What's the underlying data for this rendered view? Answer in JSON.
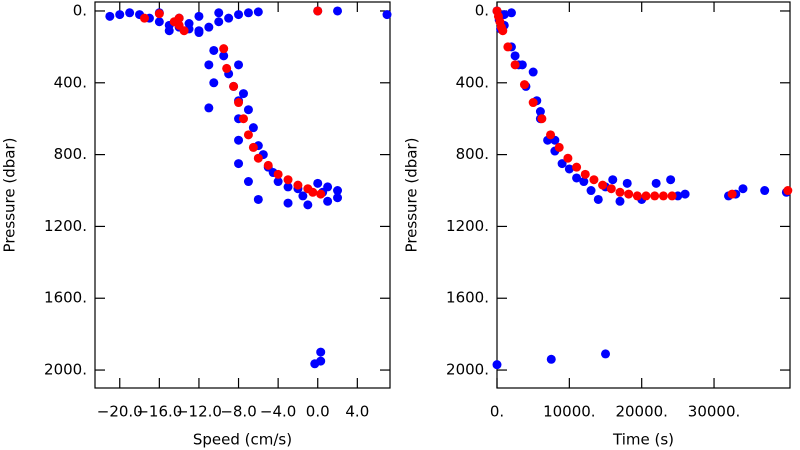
{
  "chart_data": [
    {
      "type": "scatter",
      "xlabel": "Speed (cm/s)",
      "ylabel": "Pressure (dbar)",
      "xlim": [
        -22.5,
        7.3
      ],
      "ylim": [
        2100,
        -50
      ],
      "xticks": [
        {
          "value": -20,
          "label": "−20.0"
        },
        {
          "value": -16,
          "label": "−16.0"
        },
        {
          "value": -12,
          "label": "−12.0"
        },
        {
          "value": -8,
          "label": "−8.0"
        },
        {
          "value": -4,
          "label": "−4.0"
        },
        {
          "value": 0,
          "label": "0.0"
        },
        {
          "value": 4,
          "label": "4.0"
        }
      ],
      "yticks": [
        {
          "value": 0,
          "label": "0."
        },
        {
          "value": 400,
          "label": "400."
        },
        {
          "value": 800,
          "label": "800."
        },
        {
          "value": 1200,
          "label": "1200."
        },
        {
          "value": 1600,
          "label": "1600."
        },
        {
          "value": 2000,
          "label": "2000."
        }
      ],
      "series": [
        {
          "color": "#0000ff",
          "x": [
            -21,
            -20,
            -19,
            -18,
            -17,
            -16,
            -15,
            -14,
            -13,
            -12,
            -11,
            -10,
            -9,
            -8,
            -7,
            -16,
            -12,
            -14,
            -13,
            -15,
            -12,
            -10,
            -6,
            0,
            2,
            7,
            -10.5,
            -11,
            -9.5,
            -9,
            -10.5,
            -8,
            -8.5,
            -11,
            -8,
            -7.5,
            -8,
            -7,
            -8,
            -6.5,
            -6,
            -8,
            -5.5,
            -5,
            -7,
            -4.5,
            -4,
            -6,
            -3,
            -2,
            -1.5,
            -3,
            0,
            1,
            2,
            2,
            1,
            -1,
            0.5,
            0.3,
            0.3,
            -0.3
          ],
          "values": [
            30,
            20,
            10,
            20,
            40,
            60,
            80,
            90,
            100,
            110,
            90,
            60,
            40,
            20,
            10,
            10,
            30,
            40,
            70,
            110,
            120,
            10,
            5,
            0,
            0,
            20,
            220,
            300,
            250,
            350,
            400,
            300,
            420,
            540,
            500,
            460,
            600,
            550,
            720,
            650,
            750,
            850,
            800,
            870,
            950,
            900,
            950,
            1050,
            980,
            990,
            1030,
            1070,
            960,
            980,
            1000,
            1040,
            1060,
            1080,
            1010,
            1900,
            1950,
            1965
          ]
        },
        {
          "color": "#ff0000",
          "x": [
            -17.5,
            -16,
            -14.5,
            -14,
            -13.5,
            -14,
            -9.5,
            -9.2,
            -8.5,
            -8,
            -7.5,
            -7,
            -6.5,
            -6,
            -5,
            -4,
            -3,
            -2,
            -1,
            -0.5,
            0.3,
            0
          ],
          "values": [
            40,
            15,
            60,
            80,
            110,
            40,
            210,
            320,
            420,
            510,
            600,
            690,
            760,
            820,
            860,
            910,
            940,
            970,
            990,
            1010,
            1020,
            0
          ]
        }
      ]
    },
    {
      "type": "scatter",
      "xlabel": "Time (s)",
      "ylabel": "Pressure (dbar)",
      "xlim": [
        0,
        40500
      ],
      "ylim": [
        2100,
        -50
      ],
      "xticks": [
        {
          "value": 0,
          "label": "0."
        },
        {
          "value": 10000,
          "label": "10000."
        },
        {
          "value": 20000,
          "label": "20000."
        },
        {
          "value": 30000,
          "label": "30000."
        }
      ],
      "yticks": [
        {
          "value": 0,
          "label": "0."
        },
        {
          "value": 400,
          "label": "400."
        },
        {
          "value": 800,
          "label": "800."
        },
        {
          "value": 1200,
          "label": "1200."
        },
        {
          "value": 1600,
          "label": "1600."
        },
        {
          "value": 2000,
          "label": "2000."
        }
      ],
      "series": [
        {
          "color": "#0000ff",
          "x": [
            0,
            300,
            500,
            1000,
            2000,
            2500,
            3000,
            2000,
            4000,
            5000,
            5500,
            6000,
            7000,
            8000,
            9000,
            10000,
            11000,
            12000,
            13000,
            14000,
            15000,
            16000,
            17000,
            18000,
            20000,
            22000,
            24000,
            25000,
            26000,
            32000,
            33000,
            34000,
            37000,
            40000,
            0,
            7500,
            15000,
            6000,
            8000,
            3500,
            1000
          ],
          "values": [
            0,
            50,
            100,
            80,
            200,
            250,
            300,
            10,
            420,
            340,
            500,
            600,
            720,
            780,
            850,
            880,
            930,
            950,
            1000,
            1050,
            980,
            940,
            1060,
            960,
            1050,
            960,
            940,
            1030,
            1020,
            1030,
            1020,
            990,
            1000,
            1010,
            1970,
            1940,
            1910,
            560,
            720,
            300,
            20
          ]
        },
        {
          "color": "#ff0000",
          "x": [
            0,
            200,
            400,
            600,
            800,
            1500,
            2500,
            3800,
            5000,
            6200,
            7400,
            8600,
            9800,
            11000,
            12200,
            13400,
            14600,
            15800,
            17000,
            18200,
            19400,
            20600,
            21800,
            23000,
            24200,
            32500,
            40200
          ],
          "values": [
            0,
            30,
            60,
            90,
            110,
            200,
            300,
            410,
            510,
            600,
            690,
            760,
            820,
            870,
            910,
            940,
            970,
            990,
            1010,
            1020,
            1030,
            1030,
            1030,
            1030,
            1030,
            1020,
            1000
          ]
        }
      ]
    }
  ]
}
